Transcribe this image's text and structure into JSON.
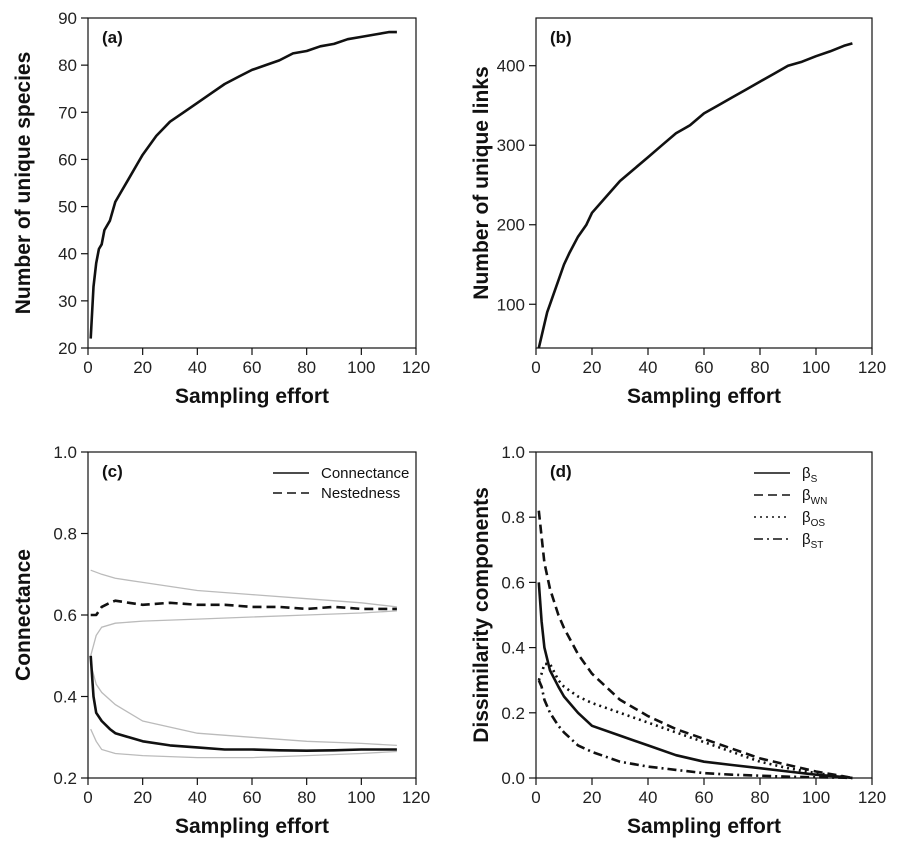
{
  "chart_data": [
    {
      "panel": "(a)",
      "type": "line",
      "xlabel": "Sampling effort",
      "ylabel": "Number of unique species",
      "xlim": [
        0,
        120
      ],
      "ylim": [
        20,
        90
      ],
      "xticks": [
        0,
        20,
        40,
        60,
        80,
        100,
        120
      ],
      "yticks": [
        20,
        30,
        40,
        50,
        60,
        70,
        80,
        90
      ],
      "grid": false,
      "series": [
        {
          "color": "#111111",
          "style": "solid",
          "x": [
            1,
            2,
            3,
            4,
            5,
            6,
            8,
            10,
            12,
            15,
            18,
            20,
            25,
            30,
            35,
            40,
            45,
            50,
            55,
            60,
            65,
            70,
            75,
            80,
            85,
            90,
            95,
            100,
            105,
            110,
            113
          ],
          "y": [
            22,
            33,
            38,
            41,
            42,
            45,
            47,
            51,
            53,
            56,
            59,
            61,
            65,
            68,
            70,
            72,
            74,
            76,
            77.5,
            79,
            80,
            81,
            82.5,
            83,
            84,
            84.5,
            85.5,
            86,
            86.5,
            87,
            87
          ]
        }
      ]
    },
    {
      "panel": "(b)",
      "type": "line",
      "xlabel": "Sampling effort",
      "ylabel": "Number of unique links",
      "xlim": [
        0,
        120
      ],
      "ylim": [
        45,
        460
      ],
      "xticks": [
        0,
        20,
        40,
        60,
        80,
        100,
        120
      ],
      "yticks": [
        100,
        200,
        300,
        400
      ],
      "grid": false,
      "series": [
        {
          "color": "#111111",
          "style": "solid",
          "x": [
            1,
            2,
            3,
            4,
            5,
            6,
            8,
            10,
            12,
            15,
            18,
            20,
            25,
            30,
            35,
            40,
            45,
            50,
            55,
            60,
            65,
            70,
            75,
            80,
            85,
            90,
            95,
            100,
            105,
            110,
            113
          ],
          "y": [
            45,
            60,
            75,
            90,
            100,
            110,
            130,
            150,
            165,
            185,
            200,
            215,
            235,
            255,
            270,
            285,
            300,
            315,
            325,
            340,
            350,
            360,
            370,
            380,
            390,
            400,
            405,
            412,
            418,
            425,
            428
          ]
        }
      ]
    },
    {
      "panel": "(c)",
      "type": "line",
      "xlabel": "Sampling effort",
      "ylabel": "Connectance",
      "xlim": [
        0,
        120
      ],
      "ylim": [
        0.2,
        1.0
      ],
      "xticks": [
        0,
        20,
        40,
        60,
        80,
        100,
        120
      ],
      "yticks": [
        0.2,
        0.4,
        0.6,
        0.8,
        1.0
      ],
      "grid": false,
      "legend": "top-right",
      "series": [
        {
          "name": "Connectance",
          "color": "#111111",
          "style": "solid",
          "x": [
            1,
            2,
            3,
            5,
            8,
            10,
            15,
            20,
            30,
            40,
            50,
            60,
            70,
            80,
            90,
            100,
            110,
            113
          ],
          "y": [
            0.5,
            0.4,
            0.36,
            0.34,
            0.32,
            0.31,
            0.3,
            0.29,
            0.28,
            0.275,
            0.27,
            0.27,
            0.268,
            0.267,
            0.268,
            0.27,
            0.27,
            0.27
          ]
        },
        {
          "name": "Nestedness",
          "color": "#111111",
          "style": "dashed",
          "x": [
            1,
            3,
            5,
            8,
            10,
            15,
            20,
            30,
            40,
            50,
            60,
            70,
            80,
            90,
            100,
            110,
            113
          ],
          "y": [
            0.6,
            0.6,
            0.62,
            0.63,
            0.635,
            0.63,
            0.625,
            0.63,
            0.625,
            0.625,
            0.62,
            0.62,
            0.615,
            0.62,
            0.615,
            0.615,
            0.615
          ]
        },
        {
          "role": "envelope",
          "color": "#bbbbbb",
          "style": "solid",
          "x": [
            1,
            5,
            10,
            20,
            40,
            60,
            80,
            100,
            113
          ],
          "y": [
            0.71,
            0.7,
            0.69,
            0.68,
            0.66,
            0.65,
            0.64,
            0.63,
            0.62
          ]
        },
        {
          "role": "envelope",
          "color": "#bbbbbb",
          "style": "solid",
          "x": [
            1,
            3,
            5,
            10,
            20,
            40,
            60,
            80,
            100,
            113
          ],
          "y": [
            0.5,
            0.55,
            0.57,
            0.58,
            0.585,
            0.59,
            0.595,
            0.6,
            0.605,
            0.61
          ]
        },
        {
          "role": "envelope",
          "color": "#bbbbbb",
          "style": "solid",
          "x": [
            1,
            3,
            5,
            10,
            20,
            40,
            60,
            80,
            100,
            113
          ],
          "y": [
            0.48,
            0.43,
            0.41,
            0.38,
            0.34,
            0.31,
            0.3,
            0.29,
            0.285,
            0.28
          ]
        },
        {
          "role": "envelope",
          "color": "#bbbbbb",
          "style": "solid",
          "x": [
            1,
            3,
            5,
            10,
            20,
            40,
            60,
            80,
            100,
            113
          ],
          "y": [
            0.32,
            0.29,
            0.27,
            0.26,
            0.255,
            0.25,
            0.25,
            0.255,
            0.26,
            0.265
          ]
        }
      ]
    },
    {
      "panel": "(d)",
      "type": "line",
      "xlabel": "Sampling effort",
      "ylabel": "Dissimilarity components",
      "xlim": [
        0,
        120
      ],
      "ylim": [
        0,
        1.0
      ],
      "xticks": [
        0,
        20,
        40,
        60,
        80,
        100,
        120
      ],
      "yticks": [
        0.0,
        0.2,
        0.4,
        0.6,
        0.8,
        1.0
      ],
      "grid": false,
      "legend": "top-right",
      "series": [
        {
          "name": "β",
          "name_subscript": "S",
          "color": "#111111",
          "style": "solid",
          "x": [
            1,
            2,
            3,
            5,
            8,
            10,
            15,
            20,
            30,
            40,
            50,
            60,
            70,
            80,
            90,
            100,
            110,
            113
          ],
          "y": [
            0.6,
            0.48,
            0.4,
            0.33,
            0.28,
            0.25,
            0.2,
            0.16,
            0.13,
            0.1,
            0.07,
            0.05,
            0.04,
            0.03,
            0.02,
            0.01,
            0.003,
            0.0
          ]
        },
        {
          "name": "β",
          "name_subscript": "WN",
          "color": "#111111",
          "style": "dashed",
          "x": [
            1,
            2,
            3,
            5,
            8,
            10,
            15,
            20,
            30,
            40,
            50,
            60,
            70,
            80,
            90,
            100,
            110,
            113
          ],
          "y": [
            0.82,
            0.74,
            0.66,
            0.58,
            0.5,
            0.46,
            0.38,
            0.32,
            0.24,
            0.19,
            0.15,
            0.12,
            0.09,
            0.06,
            0.04,
            0.02,
            0.005,
            0.0
          ]
        },
        {
          "name": "β",
          "name_subscript": "OS",
          "color": "#111111",
          "style": "dotted",
          "x": [
            1,
            2,
            3,
            5,
            8,
            10,
            15,
            20,
            30,
            40,
            50,
            60,
            70,
            80,
            90,
            100,
            110,
            113
          ],
          "y": [
            0.3,
            0.32,
            0.35,
            0.35,
            0.3,
            0.28,
            0.25,
            0.23,
            0.2,
            0.17,
            0.14,
            0.11,
            0.08,
            0.05,
            0.03,
            0.015,
            0.004,
            0.0
          ]
        },
        {
          "name": "β",
          "name_subscript": "ST",
          "color": "#111111",
          "style": "dashdot",
          "x": [
            1,
            2,
            3,
            5,
            8,
            10,
            15,
            20,
            30,
            40,
            50,
            60,
            70,
            80,
            90,
            100,
            110,
            113
          ],
          "y": [
            0.3,
            0.28,
            0.24,
            0.2,
            0.16,
            0.14,
            0.1,
            0.08,
            0.05,
            0.035,
            0.025,
            0.015,
            0.01,
            0.007,
            0.004,
            0.002,
            0.001,
            0.0
          ]
        }
      ]
    }
  ]
}
